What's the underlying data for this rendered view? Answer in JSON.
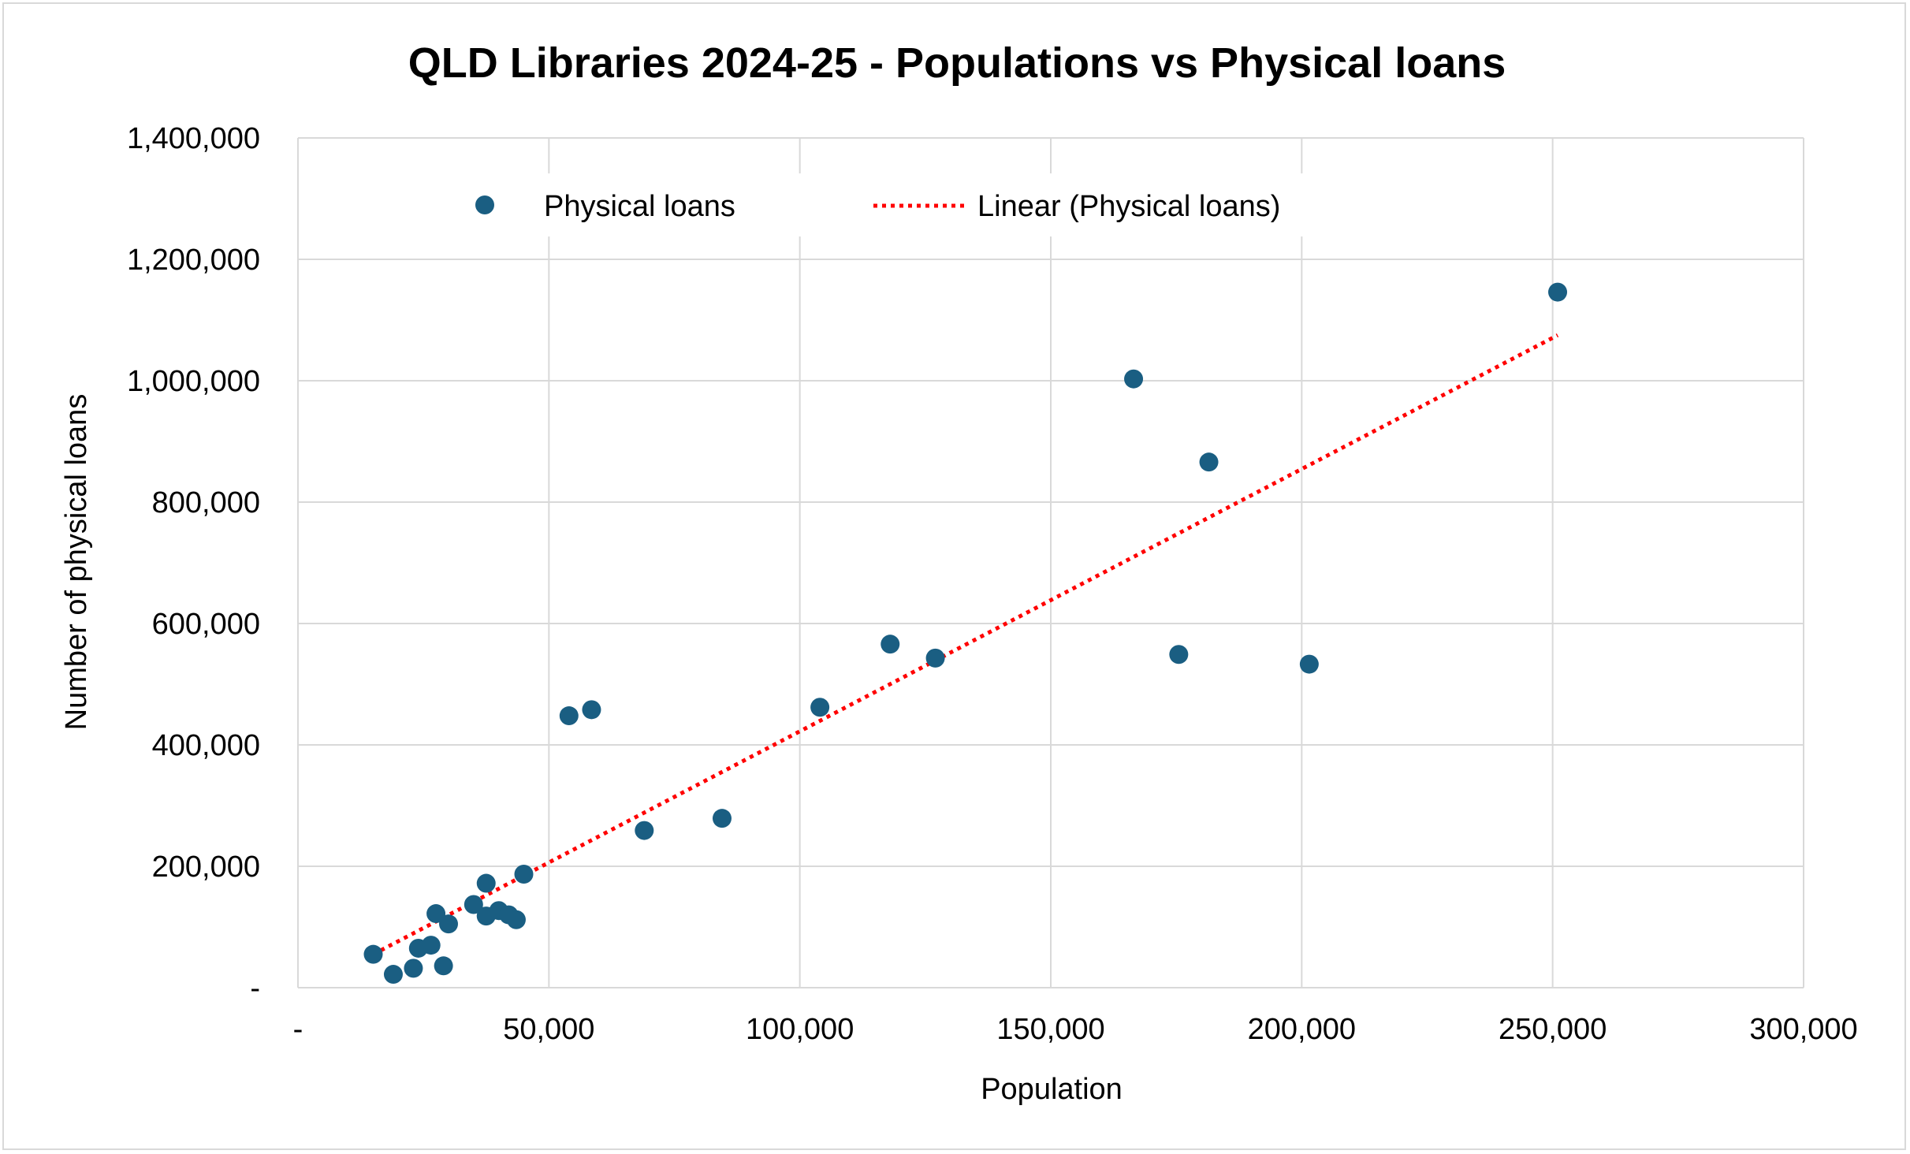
{
  "chart_data": {
    "type": "scatter",
    "title": "QLD Libraries 2024-25 - Populations vs Physical loans",
    "xlabel": "Population",
    "ylabel": "Number of physical loans",
    "xlim": [
      0,
      300000
    ],
    "ylim": [
      0,
      1400000
    ],
    "x_ticks": [
      0,
      50000,
      100000,
      150000,
      200000,
      250000,
      300000
    ],
    "x_tick_labels": [
      "-",
      "50,000",
      "100,000",
      "150,000",
      "200,000",
      "250,000",
      "300,000"
    ],
    "y_ticks": [
      0,
      200000,
      400000,
      600000,
      800000,
      1000000,
      1200000,
      1400000
    ],
    "y_tick_labels": [
      "-",
      "200,000",
      "400,000",
      "600,000",
      "800,000",
      "1,000,000",
      "1,200,000",
      "1,400,000"
    ],
    "grid": true,
    "legend_position": "top",
    "series": [
      {
        "name": "Physical loans",
        "marker": "circle",
        "color": "#1a5e82",
        "points": [
          {
            "x": 15000,
            "y": 55000
          },
          {
            "x": 19000,
            "y": 22000
          },
          {
            "x": 23000,
            "y": 32000
          },
          {
            "x": 24000,
            "y": 65000
          },
          {
            "x": 26500,
            "y": 70000
          },
          {
            "x": 27500,
            "y": 122000
          },
          {
            "x": 29000,
            "y": 36000
          },
          {
            "x": 30000,
            "y": 105000
          },
          {
            "x": 35000,
            "y": 137000
          },
          {
            "x": 37500,
            "y": 172000
          },
          {
            "x": 37500,
            "y": 118000
          },
          {
            "x": 40000,
            "y": 127000
          },
          {
            "x": 42000,
            "y": 120000
          },
          {
            "x": 43500,
            "y": 112000
          },
          {
            "x": 45000,
            "y": 187000
          },
          {
            "x": 54000,
            "y": 448000
          },
          {
            "x": 58500,
            "y": 458000
          },
          {
            "x": 69000,
            "y": 259000
          },
          {
            "x": 84500,
            "y": 279000
          },
          {
            "x": 104000,
            "y": 462000
          },
          {
            "x": 118000,
            "y": 566000
          },
          {
            "x": 127000,
            "y": 543000
          },
          {
            "x": 166500,
            "y": 1003000
          },
          {
            "x": 175500,
            "y": 549000
          },
          {
            "x": 181500,
            "y": 866000
          },
          {
            "x": 201500,
            "y": 533000
          },
          {
            "x": 251000,
            "y": 1146000
          }
        ]
      },
      {
        "name": "Linear (Physical loans)",
        "type": "trendline",
        "line_style": "dotted",
        "color": "#ff0000",
        "x": [
          15000,
          251000
        ],
        "y": [
          55000,
          1075000
        ]
      }
    ]
  }
}
